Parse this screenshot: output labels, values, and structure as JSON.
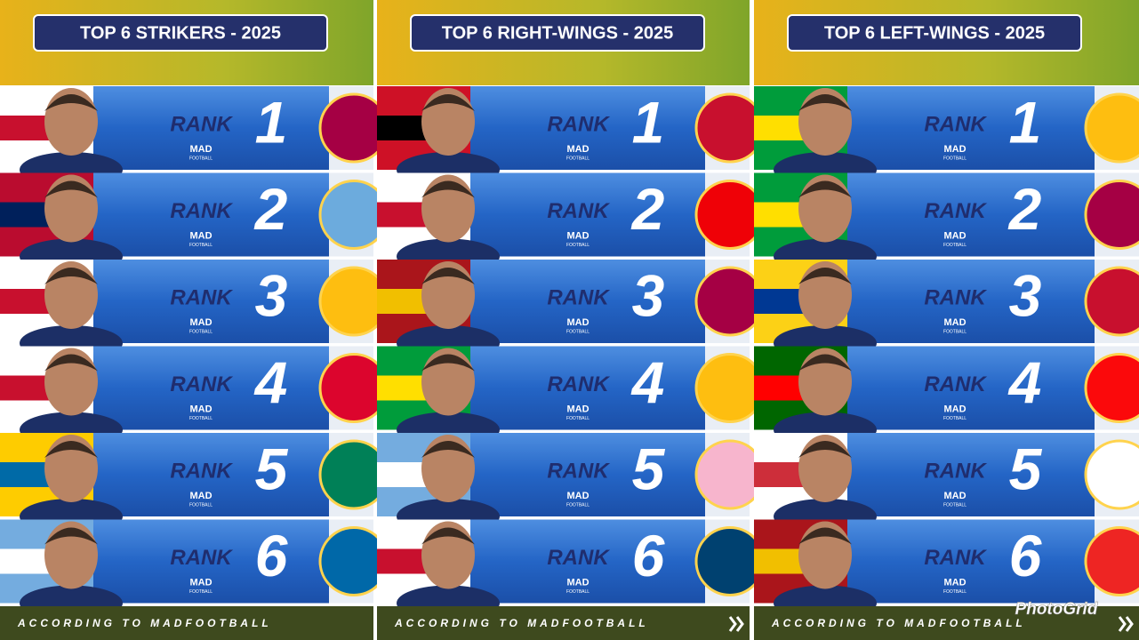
{
  "panels": [
    {
      "title": "TOP 6 STRIKERS  - 2025",
      "rows": [
        {
          "label": "RANK",
          "rank": 1,
          "logo": "MAD",
          "logo_sub": "FOOTBALL"
        },
        {
          "label": "RANK",
          "rank": 2,
          "logo": "MAD",
          "logo_sub": "FOOTBALL"
        },
        {
          "label": "RANK",
          "rank": 3,
          "logo": "MAD",
          "logo_sub": "FOOTBALL"
        },
        {
          "label": "RANK",
          "rank": 4,
          "logo": "MAD",
          "logo_sub": "FOOTBALL"
        },
        {
          "label": "RANK",
          "rank": 5,
          "logo": "MAD",
          "logo_sub": "FOOTBALL"
        },
        {
          "label": "RANK",
          "rank": 6,
          "logo": "MAD",
          "logo_sub": "FOOTBALL"
        }
      ],
      "footer": "ACCORDING TO MADFOOTBALL"
    },
    {
      "title": "TOP 6 RIGHT-WINGS  - 2025",
      "rows": [
        {
          "label": "RANK",
          "rank": 1,
          "logo": "MAD",
          "logo_sub": "FOOTBALL"
        },
        {
          "label": "RANK",
          "rank": 2,
          "logo": "MAD",
          "logo_sub": "FOOTBALL"
        },
        {
          "label": "RANK",
          "rank": 3,
          "logo": "MAD",
          "logo_sub": "FOOTBALL"
        },
        {
          "label": "RANK",
          "rank": 4,
          "logo": "MAD",
          "logo_sub": "FOOTBALL"
        },
        {
          "label": "RANK",
          "rank": 5,
          "logo": "MAD",
          "logo_sub": "FOOTBALL"
        },
        {
          "label": "RANK",
          "rank": 6,
          "logo": "MAD",
          "logo_sub": "FOOTBALL"
        }
      ],
      "footer": "ACCORDING TO MADFOOTBALL"
    },
    {
      "title": "TOP 6 LEFT-WINGS  - 2025",
      "rows": [
        {
          "label": "RANK",
          "rank": 1,
          "logo": "MAD",
          "logo_sub": "FOOTBALL"
        },
        {
          "label": "RANK",
          "rank": 2,
          "logo": "MAD",
          "logo_sub": "FOOTBALL"
        },
        {
          "label": "RANK",
          "rank": 3,
          "logo": "MAD",
          "logo_sub": "FOOTBALL"
        },
        {
          "label": "RANK",
          "rank": 4,
          "logo": "MAD",
          "logo_sub": "FOOTBALL"
        },
        {
          "label": "RANK",
          "rank": 5,
          "logo": "MAD",
          "logo_sub": "FOOTBALL"
        },
        {
          "label": "RANK",
          "rank": 6,
          "logo": "MAD",
          "logo_sub": "FOOTBALL"
        }
      ],
      "footer": "ACCORDING TO MADFOOTBALL"
    }
  ],
  "watermark": "PhotoGrid"
}
